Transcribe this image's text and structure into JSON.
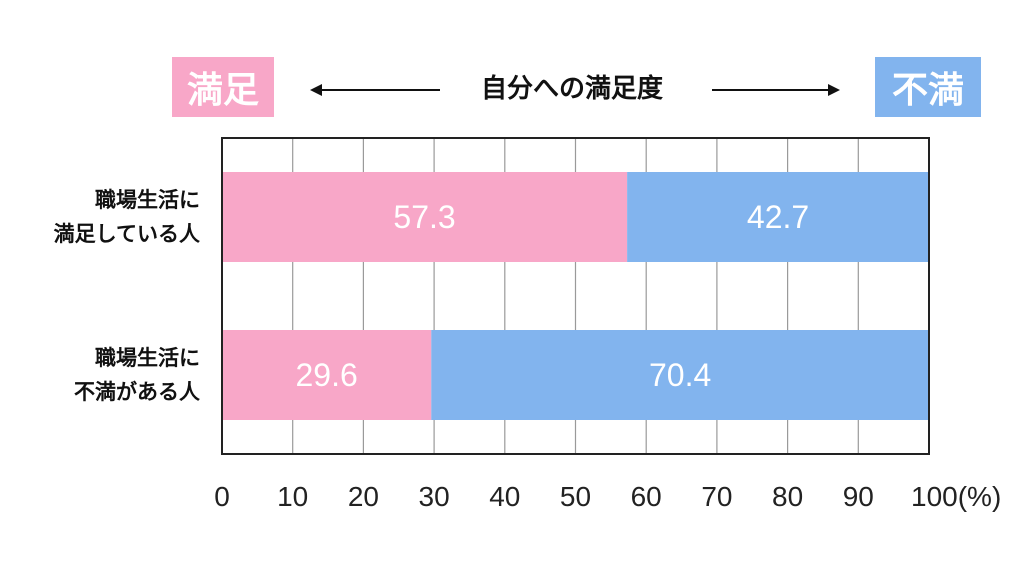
{
  "header": {
    "left_badge": "満足",
    "right_badge": "不満",
    "title": "自分への満足度",
    "colors": {
      "satisfied": "#F8A7C8",
      "dissatisfied": "#82B4EE"
    }
  },
  "chart_data": {
    "type": "bar",
    "orientation": "horizontal",
    "stacked": true,
    "percent": true,
    "categories": [
      [
        "職場生活に",
        "満足している人"
      ],
      [
        "職場生活に",
        "不満がある人"
      ]
    ],
    "series": [
      {
        "name": "満足",
        "values": [
          57.3,
          29.6
        ],
        "color": "#F8A7C8"
      },
      {
        "name": "不満",
        "values": [
          42.7,
          70.4
        ],
        "color": "#82B4EE"
      }
    ],
    "x_ticks": [
      "0",
      "10",
      "20",
      "30",
      "40",
      "50",
      "60",
      "70",
      "80",
      "90",
      "100(%)"
    ],
    "xlim": [
      0,
      100
    ],
    "grid": true
  }
}
